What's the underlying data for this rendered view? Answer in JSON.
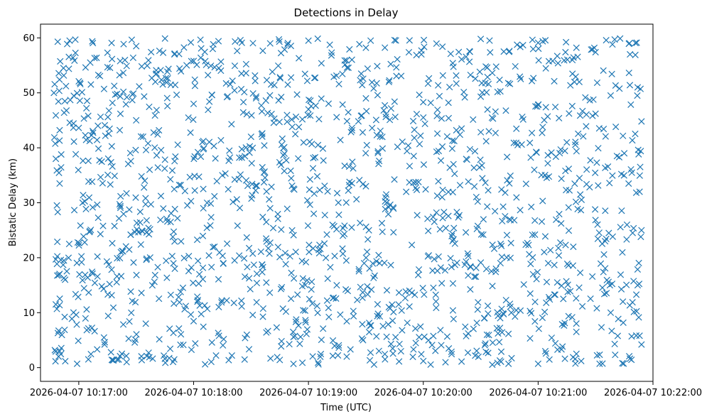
{
  "chart_data": {
    "type": "scatter",
    "title": "Detections in Delay",
    "xlabel": "Time (UTC)",
    "ylabel": "Bistatic Delay (km)",
    "marker": "x",
    "color": "#1f77b4",
    "grid": false,
    "x_range": [
      "2026-04-07 10:16:40",
      "2026-04-07 10:22:00"
    ],
    "ylim": [
      -2.5,
      62.5
    ],
    "x_ticks": [
      "2026-04-07 10:17:00",
      "2026-04-07 10:18:00",
      "2026-04-07 10:19:00",
      "2026-04-07 10:20:00",
      "2026-04-07 10:21:00",
      "2026-04-07 10:22:00"
    ],
    "y_ticks": [
      0,
      10,
      20,
      30,
      40,
      50,
      60
    ],
    "data_time_range": [
      "2026-04-07 10:16:47",
      "2026-04-07 10:21:54"
    ],
    "data_delay_range": [
      0.5,
      59.9
    ],
    "points": [
      {
        "x": "10:16:47",
        "y": 50.0
      },
      {
        "x": "10:16:48",
        "y": 45.9
      },
      {
        "x": "10:16:48",
        "y": 38.0
      },
      {
        "x": "10:16:49",
        "y": 59.3
      },
      {
        "x": "10:16:50",
        "y": 43.2
      },
      {
        "x": "10:16:52",
        "y": 54.5
      },
      {
        "x": "10:16:55",
        "y": 22.5
      },
      {
        "x": "10:16:57",
        "y": 56.4
      },
      {
        "x": "10:17:00",
        "y": 52.1
      },
      {
        "x": "10:17:04",
        "y": 47.2
      },
      {
        "x": "10:17:06",
        "y": 55.5
      },
      {
        "x": "10:17:10",
        "y": 44.0
      },
      {
        "x": "10:17:15",
        "y": 57.3
      },
      {
        "x": "10:17:20",
        "y": 49.8
      },
      {
        "x": "10:17:25",
        "y": 54.9
      },
      {
        "x": "10:17:30",
        "y": 58.5
      },
      {
        "x": "10:17:40",
        "y": 52.0
      },
      {
        "x": "10:17:50",
        "y": 57.0
      },
      {
        "x": "10:18:00",
        "y": 55.8
      },
      {
        "x": "10:18:10",
        "y": 58.0
      },
      {
        "x": "10:18:13",
        "y": 59.4
      },
      {
        "x": "10:18:25",
        "y": 53.5
      },
      {
        "x": "10:18:40",
        "y": 59.0
      },
      {
        "x": "10:18:55",
        "y": 56.3
      },
      {
        "x": "10:19:00",
        "y": 59.5
      },
      {
        "x": "10:19:12",
        "y": 56.8
      },
      {
        "x": "10:19:30",
        "y": 58.2
      },
      {
        "x": "10:19:45",
        "y": 59.6
      },
      {
        "x": "10:19:59",
        "y": 57.0
      },
      {
        "x": "10:20:10",
        "y": 58.4
      },
      {
        "x": "10:20:20",
        "y": 56.1
      },
      {
        "x": "10:20:30",
        "y": 59.8
      },
      {
        "x": "10:20:45",
        "y": 57.6
      },
      {
        "x": "10:21:00",
        "y": 59.1
      },
      {
        "x": "10:21:10",
        "y": 56.7
      },
      {
        "x": "10:21:20",
        "y": 58.2
      },
      {
        "x": "10:21:30",
        "y": 57.4
      },
      {
        "x": "10:21:40",
        "y": 59.7
      },
      {
        "x": "10:21:48",
        "y": 57.0
      },
      {
        "x": "10:21:52",
        "y": 51.0
      },
      {
        "x": "10:21:54",
        "y": 44.8
      },
      {
        "x": "10:21:53",
        "y": 32.0
      },
      {
        "x": "10:21:54",
        "y": 25.0
      },
      {
        "x": "10:21:52",
        "y": 15.0
      },
      {
        "x": "10:21:53",
        "y": 5.8
      },
      {
        "x": "10:21:54",
        "y": 4.2
      },
      {
        "x": "10:21:44",
        "y": 0.8
      },
      {
        "x": "10:21:20",
        "y": 2.5
      },
      {
        "x": "10:21:00",
        "y": 0.7
      },
      {
        "x": "10:20:40",
        "y": 1.3
      },
      {
        "x": "10:20:20",
        "y": 1.1
      },
      {
        "x": "10:20:00",
        "y": 1.2
      },
      {
        "x": "10:19:40",
        "y": 1.5
      },
      {
        "x": "10:19:20",
        "y": 2.0
      },
      {
        "x": "10:19:05",
        "y": 0.9
      },
      {
        "x": "10:18:45",
        "y": 1.4
      },
      {
        "x": "10:18:20",
        "y": 2.2
      },
      {
        "x": "10:18:06",
        "y": 0.6
      },
      {
        "x": "10:17:45",
        "y": 1.6
      },
      {
        "x": "10:17:25",
        "y": 1.0
      },
      {
        "x": "10:17:05",
        "y": 1.5
      },
      {
        "x": "10:16:50",
        "y": 3.0
      },
      {
        "x": "10:16:48",
        "y": 11.5
      },
      {
        "x": "10:16:48",
        "y": 19.7
      },
      {
        "x": "10:16:49",
        "y": 28.3
      },
      {
        "x": "10:16:50",
        "y": 33.5
      },
      {
        "x": "10:17:02",
        "y": 30.0
      },
      {
        "x": "10:17:12",
        "y": 14.8
      },
      {
        "x": "10:17:22",
        "y": 21.0
      },
      {
        "x": "10:17:35",
        "y": 8.0
      },
      {
        "x": "10:17:48",
        "y": 26.5
      },
      {
        "x": "10:18:02",
        "y": 12.0
      },
      {
        "x": "10:18:15",
        "y": 35.0
      },
      {
        "x": "10:18:28",
        "y": 18.3
      },
      {
        "x": "10:18:40",
        "y": 29.0
      },
      {
        "x": "10:18:52",
        "y": 6.5
      },
      {
        "x": "10:19:05",
        "y": 40.5
      },
      {
        "x": "10:19:18",
        "y": 24.0
      },
      {
        "x": "10:19:30",
        "y": 33.0
      },
      {
        "x": "10:19:42",
        "y": 11.0
      },
      {
        "x": "10:19:55",
        "y": 38.5
      },
      {
        "x": "10:20:08",
        "y": 20.2
      },
      {
        "x": "10:20:20",
        "y": 43.5
      },
      {
        "x": "10:20:32",
        "y": 9.0
      },
      {
        "x": "10:20:45",
        "y": 27.0
      },
      {
        "x": "10:20:58",
        "y": 36.0
      },
      {
        "x": "10:21:10",
        "y": 15.5
      },
      {
        "x": "10:21:22",
        "y": 31.5
      },
      {
        "x": "10:21:35",
        "y": 23.0
      },
      {
        "x": "10:21:45",
        "y": 39.0
      },
      {
        "x": "10:17:30",
        "y": 45.0
      },
      {
        "x": "10:18:00",
        "y": 48.0
      },
      {
        "x": "10:18:30",
        "y": 42.0
      },
      {
        "x": "10:19:00",
        "y": 47.0
      },
      {
        "x": "10:19:30",
        "y": 49.0
      },
      {
        "x": "10:20:00",
        "y": 45.5
      },
      {
        "x": "10:20:30",
        "y": 49.3
      },
      {
        "x": "10:21:00",
        "y": 47.8
      },
      {
        "x": "10:21:30",
        "y": 46.2
      }
    ]
  }
}
